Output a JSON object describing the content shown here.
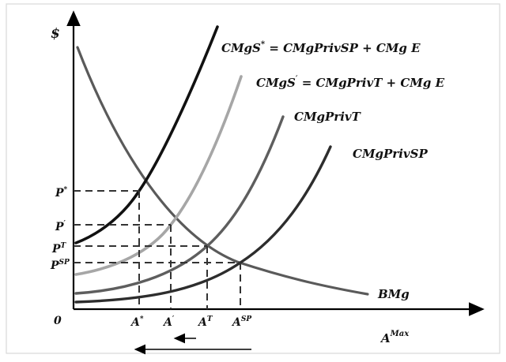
{
  "figure": {
    "y_axis_label": "$",
    "origin_label": "0",
    "x_axis_end_label": {
      "base": "A",
      "sup": "Max"
    },
    "x_ticks": [
      {
        "base": "A",
        "sup": "*"
      },
      {
        "base": "A",
        "sup": "′"
      },
      {
        "base": "A",
        "sup": "T"
      },
      {
        "base": "A",
        "sup": "SP"
      }
    ],
    "y_ticks": [
      {
        "base": "P",
        "sup": "*"
      },
      {
        "base": "P",
        "sup": "′"
      },
      {
        "base": "P",
        "sup": "T"
      },
      {
        "base": "P",
        "sup": "SP"
      }
    ],
    "curve_labels": {
      "cmgs_star": {
        "pre": "CMgS",
        "sup": "*",
        "rest": " = CMgPrivSP + CMg E"
      },
      "cmgs_prime": {
        "pre": "CMgS",
        "sup": "′",
        "rest": " = CMgPrivT + CMg E"
      },
      "cmgprivt": "CMgPrivT",
      "cmgprivsp": "CMgPrivSP",
      "bmg": "BMg"
    },
    "colors": {
      "cmgs_star": "#111111",
      "cmgs_prime": "#a6a6a6",
      "cmgprivt": "#5e5e5e",
      "cmgprivsp": "#2d2d2d",
      "bmg": "#5a5a5a"
    }
  }
}
